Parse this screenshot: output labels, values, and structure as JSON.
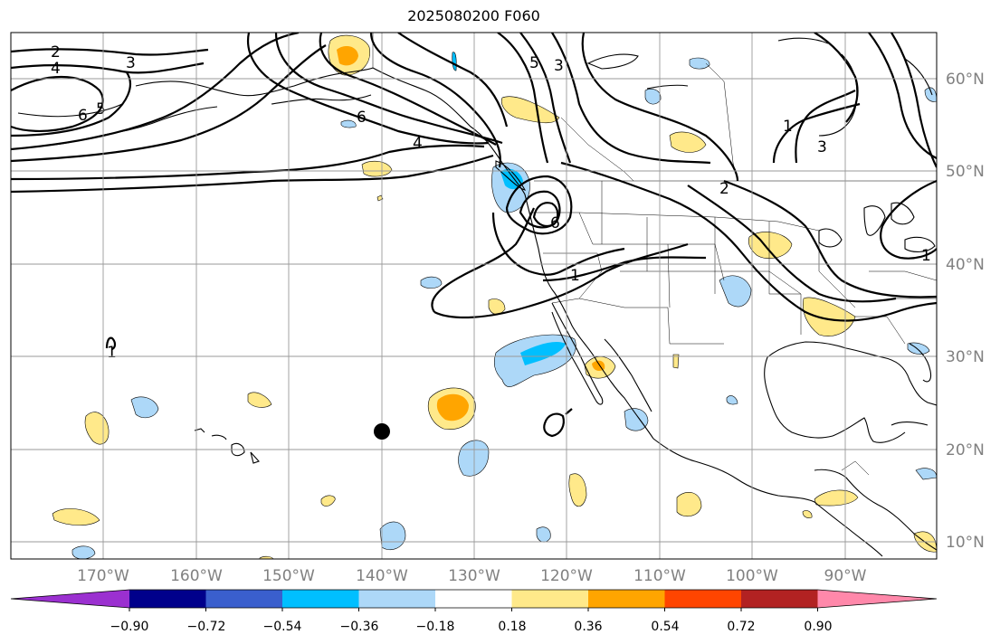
{
  "title": "2025080200 F060",
  "lat_labels": [
    "60°N",
    "50°N",
    "40°N",
    "30°N",
    "20°N",
    "10°N"
  ],
  "lon_labels": [
    "170°W",
    "160°W",
    "150°W",
    "140°W",
    "130°W",
    "120°W",
    "110°W",
    "100°W",
    "90°W"
  ],
  "colorbar": {
    "ticks": [
      "−0.90",
      "−0.72",
      "−0.54",
      "−0.36",
      "−0.18",
      "0.18",
      "0.36",
      "0.54",
      "0.72",
      "0.90"
    ],
    "colors": [
      "#9b30d0",
      "#00008b",
      "#3a5fcd",
      "#00bfff",
      "#add8f8",
      "#ffffff",
      "#ffe98a",
      "#ffa500",
      "#ff4500",
      "#b22222",
      "#ff88aa"
    ]
  },
  "contour_labels": [
    "2",
    "4",
    "3",
    "6",
    "5",
    "6",
    "4",
    "5",
    "3",
    "6",
    "1",
    "1",
    "3",
    "2",
    "1",
    "1"
  ],
  "marker": "storm-center-dot"
}
